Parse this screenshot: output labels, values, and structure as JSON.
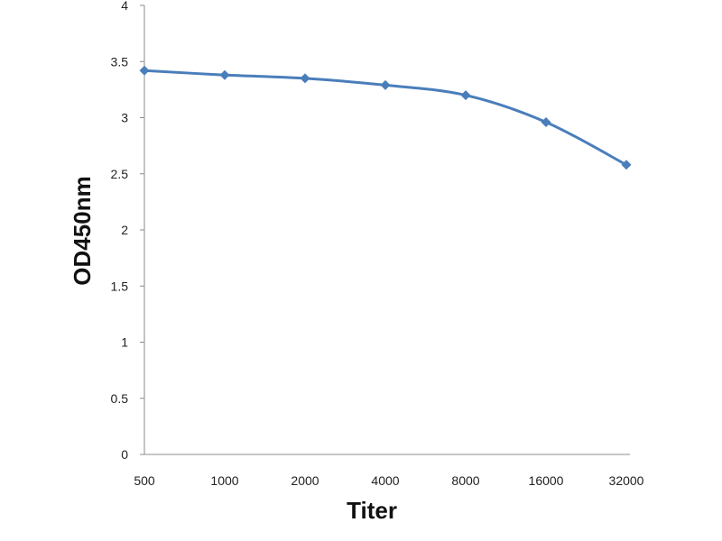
{
  "chart_data": {
    "type": "line",
    "xlabel": "Titer",
    "ylabel": "OD450nm",
    "categories": [
      "500",
      "1000",
      "2000",
      "4000",
      "8000",
      "16000",
      "32000"
    ],
    "y_ticks": [
      "0",
      "0.5",
      "1",
      "1.5",
      "2",
      "2.5",
      "3",
      "3.5",
      "4"
    ],
    "ylim": [
      0,
      4
    ],
    "grid": false,
    "series": [
      {
        "values": [
          3.42,
          3.38,
          3.35,
          3.29,
          3.2,
          2.96,
          2.58
        ]
      }
    ],
    "colors": {
      "line": "#4a7ebb",
      "axis": "#8c8c8c"
    }
  }
}
